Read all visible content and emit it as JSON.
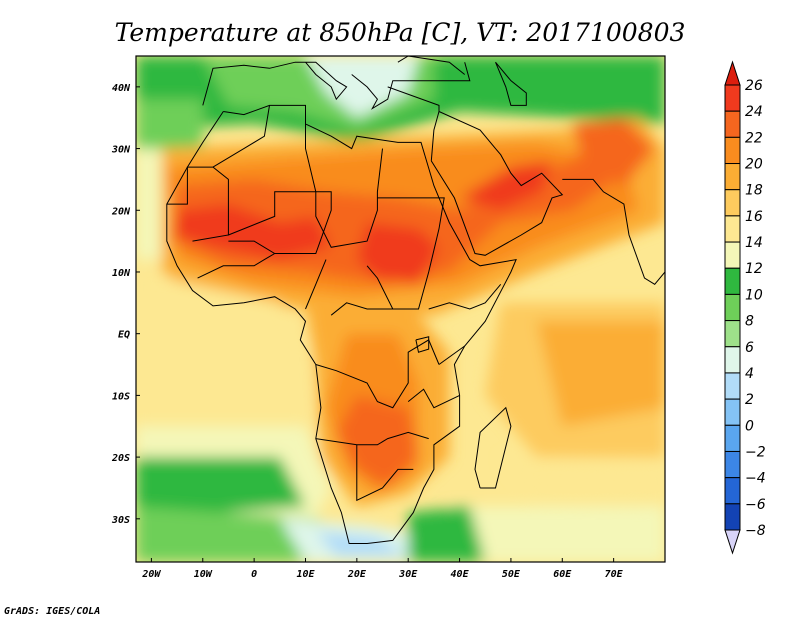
{
  "title": "Temperature at 850hPa [C], VT: 2017100803",
  "credit": "GrADS: IGES/COLA",
  "map": {
    "lon_range": [
      -23,
      80
    ],
    "lat_range": [
      -37,
      45
    ],
    "lon_ticks": [
      {
        "value": -20,
        "label": "20W"
      },
      {
        "value": -10,
        "label": "10W"
      },
      {
        "value": 0,
        "label": "0"
      },
      {
        "value": 10,
        "label": "10E"
      },
      {
        "value": 20,
        "label": "20E"
      },
      {
        "value": 30,
        "label": "30E"
      },
      {
        "value": 40,
        "label": "40E"
      },
      {
        "value": 50,
        "label": "50E"
      },
      {
        "value": 60,
        "label": "60E"
      },
      {
        "value": 70,
        "label": "70E"
      }
    ],
    "lat_ticks": [
      {
        "value": 40,
        "label": "40N"
      },
      {
        "value": 30,
        "label": "30N"
      },
      {
        "value": 20,
        "label": "20N"
      },
      {
        "value": 10,
        "label": "10N"
      },
      {
        "value": 0,
        "label": "EQ"
      },
      {
        "value": -10,
        "label": "10S"
      },
      {
        "value": -20,
        "label": "20S"
      },
      {
        "value": -30,
        "label": "30S"
      }
    ]
  },
  "colorbar": {
    "levels": [
      26,
      24,
      22,
      20,
      18,
      16,
      14,
      12,
      10,
      8,
      6,
      4,
      2,
      0,
      -2,
      -4,
      -6,
      -8
    ],
    "colors": [
      "#f03a1e",
      "#f5661f",
      "#f98c1f",
      "#fbad34",
      "#fdcb5e",
      "#fde892",
      "#f4f7b8",
      "#2fb83f",
      "#6ecf59",
      "#9ee18a",
      "#dff6ea",
      "#b1dcf8",
      "#84c3f5",
      "#5aa6ef",
      "#3c86e6",
      "#2466d6",
      "#1343b4",
      "#0b1f7d"
    ],
    "top_arrow_color": "#dc1e0e",
    "bottom_arrow_color": "#d8d4f8"
  }
}
